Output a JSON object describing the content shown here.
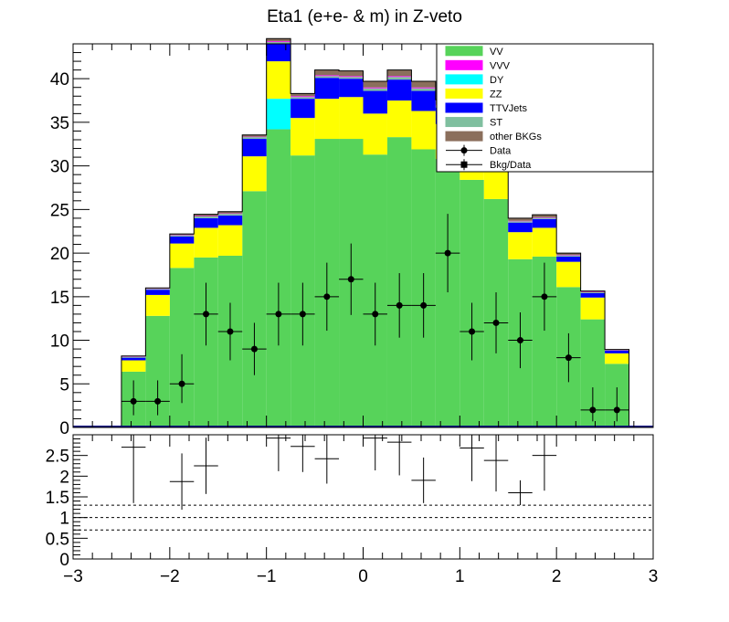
{
  "chart_data": {
    "type": "bar",
    "title": "Eta1 (e+e- & m) in Z-veto",
    "xlim": [
      -3,
      3
    ],
    "x_ticks": [
      "−3",
      "−2",
      "−1",
      "0",
      "1",
      "2",
      "3"
    ],
    "bin_edges": [
      -3.0,
      -2.75,
      -2.5,
      -2.25,
      -2.0,
      -1.75,
      -1.5,
      -1.25,
      -1.0,
      -0.75,
      -0.5,
      -0.25,
      0.0,
      0.25,
      0.5,
      0.75,
      1.0,
      1.25,
      1.5,
      1.75,
      2.0,
      2.25,
      2.5,
      2.75,
      3.0
    ],
    "main": {
      "ylim": [
        0,
        44
      ],
      "y_ticks": [
        "0",
        "5",
        "10",
        "15",
        "20",
        "25",
        "30",
        "35",
        "40"
      ],
      "grid": false,
      "legend_position": "top-right",
      "stack_order": [
        "VV",
        "DY",
        "ZZ",
        "TTVJets",
        "ST",
        "VVV",
        "other BKGs"
      ],
      "series": [
        {
          "name": "VV",
          "color": "#57d35a",
          "values": [
            0,
            0,
            6.4,
            12.8,
            18.3,
            19.5,
            19.7,
            27.1,
            34.2,
            31.2,
            33.1,
            33.1,
            31.3,
            33.3,
            31.9,
            30.8,
            28.4,
            26.2,
            19.3,
            19.6,
            16.1,
            12.4,
            7.3,
            0
          ]
        },
        {
          "name": "DY",
          "color": "#00ffff",
          "values": [
            0,
            0,
            0,
            0,
            0,
            0,
            0,
            0,
            3.5,
            0,
            0,
            0,
            0,
            0,
            0,
            0,
            0,
            0,
            0,
            0,
            0,
            0,
            0,
            0
          ]
        },
        {
          "name": "ZZ",
          "color": "#ffff00",
          "values": [
            0,
            0,
            1.3,
            2.4,
            2.8,
            3.4,
            3.5,
            4.0,
            4.3,
            4.3,
            4.6,
            4.8,
            4.7,
            4.2,
            4.4,
            4.0,
            3.6,
            3.3,
            3.1,
            3.3,
            2.9,
            2.5,
            1.2,
            0
          ]
        },
        {
          "name": "TTVJets",
          "color": "#0000ff",
          "values": [
            0,
            0,
            0.3,
            0.6,
            0.8,
            1.1,
            1.1,
            2.0,
            2.0,
            2.2,
            2.4,
            2.1,
            2.6,
            2.4,
            2.3,
            1.9,
            1.9,
            1.6,
            1.1,
            1.0,
            0.6,
            0.5,
            0.3,
            0
          ]
        },
        {
          "name": "ST",
          "color": "#7fbf9f",
          "values": [
            0,
            0,
            0.1,
            0.1,
            0.15,
            0.2,
            0.2,
            0.2,
            0.2,
            0.2,
            0.2,
            0.2,
            0.3,
            0.3,
            0.3,
            0.2,
            0.2,
            0.2,
            0.15,
            0.15,
            0.15,
            0.1,
            0.05,
            0
          ]
        },
        {
          "name": "VVV",
          "color": "#ff00ff",
          "values": [
            0,
            0,
            0.05,
            0.05,
            0.05,
            0.05,
            0.05,
            0.05,
            0.1,
            0.1,
            0.1,
            0.1,
            0.1,
            0.1,
            0.1,
            0.1,
            0.1,
            0.05,
            0.05,
            0.05,
            0.05,
            0.05,
            0.05,
            0
          ]
        },
        {
          "name": "other BKGs",
          "color": "#8b6f5c",
          "values": [
            0,
            0,
            0.05,
            0.05,
            0.1,
            0.2,
            0.2,
            0.2,
            0.3,
            0.3,
            0.6,
            0.6,
            0.7,
            0.7,
            0.7,
            0.6,
            0.5,
            0.4,
            0.3,
            0.3,
            0.2,
            0.1,
            0.05,
            0
          ]
        }
      ],
      "data_points": [
        {
          "x": -2.375,
          "y": 3,
          "err_low": 1.6,
          "err_high": 2.4
        },
        {
          "x": -2.125,
          "y": 3,
          "err_low": 1.6,
          "err_high": 2.4
        },
        {
          "x": -1.875,
          "y": 5,
          "err_low": 2.2,
          "err_high": 3.4
        },
        {
          "x": -1.625,
          "y": 13,
          "err_low": 3.6,
          "err_high": 3.6
        },
        {
          "x": -1.375,
          "y": 11,
          "err_low": 3.3,
          "err_high": 3.3
        },
        {
          "x": -1.125,
          "y": 9,
          "err_low": 3.0,
          "err_high": 3.0
        },
        {
          "x": -0.875,
          "y": 13,
          "err_low": 3.6,
          "err_high": 3.6
        },
        {
          "x": -0.625,
          "y": 13,
          "err_low": 3.6,
          "err_high": 3.6
        },
        {
          "x": -0.375,
          "y": 15,
          "err_low": 3.9,
          "err_high": 3.9
        },
        {
          "x": -0.125,
          "y": 17,
          "err_low": 4.1,
          "err_high": 4.1
        },
        {
          "x": 0.125,
          "y": 13,
          "err_low": 3.6,
          "err_high": 3.6
        },
        {
          "x": 0.375,
          "y": 14,
          "err_low": 3.7,
          "err_high": 3.7
        },
        {
          "x": 0.625,
          "y": 14,
          "err_low": 3.7,
          "err_high": 3.7
        },
        {
          "x": 0.875,
          "y": 20,
          "err_low": 4.5,
          "err_high": 4.5
        },
        {
          "x": 1.125,
          "y": 11,
          "err_low": 3.3,
          "err_high": 3.3
        },
        {
          "x": 1.375,
          "y": 12,
          "err_low": 3.5,
          "err_high": 3.5
        },
        {
          "x": 1.625,
          "y": 10,
          "err_low": 3.2,
          "err_high": 3.2
        },
        {
          "x": 1.875,
          "y": 15,
          "err_low": 3.9,
          "err_high": 3.9
        },
        {
          "x": 2.125,
          "y": 8,
          "err_low": 2.8,
          "err_high": 2.8
        },
        {
          "x": 2.375,
          "y": 2,
          "err_low": 1.3,
          "err_high": 2.6
        },
        {
          "x": 2.625,
          "y": 2,
          "err_low": 1.3,
          "err_high": 2.6
        }
      ]
    },
    "ratio": {
      "ylim": [
        0,
        3
      ],
      "y_ticks": [
        "0",
        "0.5",
        "1",
        "1.5",
        "2",
        "2.5"
      ],
      "reference_lines": [
        0.7,
        1.0,
        1.3
      ],
      "points": [
        {
          "x": -2.375,
          "y": 2.7,
          "err": 1.35
        },
        {
          "x": -1.875,
          "y": 1.87,
          "err": 0.68
        },
        {
          "x": -1.625,
          "y": 2.25,
          "err": 0.68
        },
        {
          "x": -0.875,
          "y": 2.92,
          "err": 0.8
        },
        {
          "x": -0.625,
          "y": 2.72,
          "err": 0.62
        },
        {
          "x": -0.375,
          "y": 2.42,
          "err": 0.6
        },
        {
          "x": 0.125,
          "y": 2.92,
          "err": 0.78
        },
        {
          "x": 0.375,
          "y": 2.82,
          "err": 0.8
        },
        {
          "x": 0.625,
          "y": 1.9,
          "err": 0.55
        },
        {
          "x": 1.125,
          "y": 2.68,
          "err": 0.8
        },
        {
          "x": 1.375,
          "y": 2.38,
          "err": 0.75
        },
        {
          "x": 1.625,
          "y": 1.6,
          "err": 0.3
        },
        {
          "x": 1.875,
          "y": 2.5,
          "err": 0.85
        }
      ]
    },
    "legend": [
      {
        "label": "VV",
        "kind": "box",
        "color": "#57d35a"
      },
      {
        "label": "VVV",
        "kind": "box",
        "color": "#ff00ff"
      },
      {
        "label": "DY",
        "kind": "box",
        "color": "#00ffff"
      },
      {
        "label": "ZZ",
        "kind": "box",
        "color": "#ffff00"
      },
      {
        "label": "TTVJets",
        "kind": "box",
        "color": "#0000ff"
      },
      {
        "label": "ST",
        "kind": "box",
        "color": "#7fbf9f"
      },
      {
        "label": "other BKGs",
        "kind": "box",
        "color": "#8b6f5c"
      },
      {
        "label": "Data",
        "kind": "circle",
        "color": "#000000"
      },
      {
        "label": "Bkg/Data",
        "kind": "square",
        "color": "#000000"
      }
    ]
  }
}
